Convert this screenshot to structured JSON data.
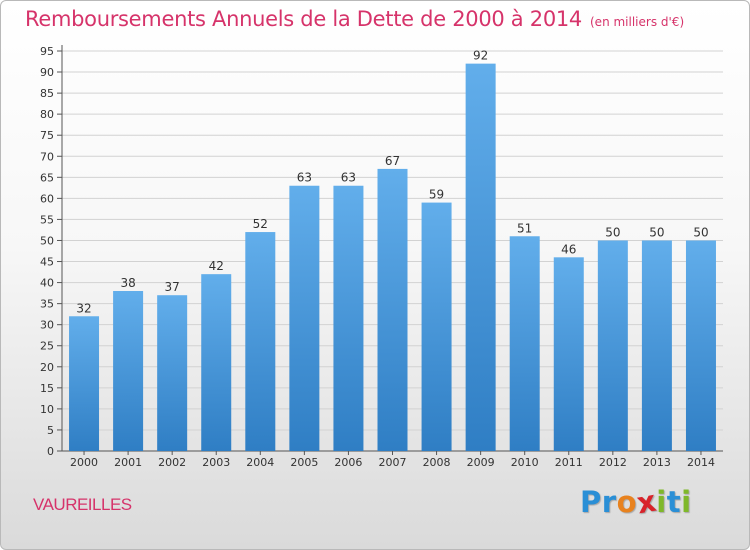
{
  "header": {
    "title": "Remboursements Annuels de la Dette de 2000 à 2014",
    "subtitle": "(en milliers d'€)"
  },
  "footer": {
    "place": "VAUREILLES",
    "logo_letters": [
      {
        "ch": "P",
        "color": "#2a8fd6"
      },
      {
        "ch": "r",
        "color": "#2a8fd6"
      },
      {
        "ch": "o",
        "color": "#e8821e"
      },
      {
        "ch": "x",
        "color": "#d8232a"
      },
      {
        "ch": "i",
        "color": "#7fb82a"
      },
      {
        "ch": "t",
        "color": "#2a8fd6"
      },
      {
        "ch": "i",
        "color": "#7fb82a"
      }
    ]
  },
  "colors": {
    "title": "#d6336a",
    "bar_top": "#62aeeb",
    "bar_bottom": "#2f7ec4"
  },
  "chart_data": {
    "type": "bar",
    "title": "Remboursements Annuels de la Dette de 2000 à 2014",
    "categories": [
      "2000",
      "2001",
      "2002",
      "2003",
      "2004",
      "2005",
      "2006",
      "2007",
      "2008",
      "2009",
      "2010",
      "2011",
      "2012",
      "2013",
      "2014"
    ],
    "values": [
      32,
      38,
      37,
      42,
      52,
      63,
      63,
      67,
      59,
      92,
      51,
      46,
      50,
      50,
      50
    ],
    "ylim": [
      0,
      95
    ],
    "yticks": [
      0,
      5,
      10,
      15,
      20,
      25,
      30,
      35,
      40,
      45,
      50,
      55,
      60,
      65,
      70,
      75,
      80,
      85,
      90,
      95
    ],
    "grid": true,
    "xlabel": "",
    "ylabel": ""
  }
}
